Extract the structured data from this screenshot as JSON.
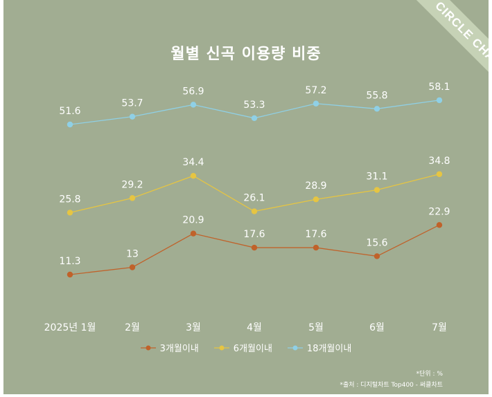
{
  "title": "월별 신곡 이용량 비중",
  "badge": "CIRCLE CHART",
  "unit_note": "*단위 : %",
  "source_note": "*출처 : 디지털차트 Top400 - 써클차트",
  "colors": {
    "background": "#a1ad92",
    "series_3m": "#c0622a",
    "series_6m": "#e6c542",
    "series_18m": "#8fd0e6",
    "text": "#ffffff"
  },
  "chart_data": {
    "type": "line",
    "title": "월별 신곡 이용량 비중",
    "categories": [
      "2025년 1월",
      "2월",
      "3월",
      "4월",
      "5월",
      "6월",
      "7월"
    ],
    "series": [
      {
        "name": "3개월이내",
        "values": [
          11.3,
          13,
          20.9,
          17.6,
          17.6,
          15.6,
          22.9
        ]
      },
      {
        "name": "6개월이내",
        "values": [
          25.8,
          29.2,
          34.4,
          26.1,
          28.9,
          31.1,
          34.8
        ]
      },
      {
        "name": "18개월이내",
        "values": [
          51.6,
          53.7,
          56.9,
          53.3,
          57.2,
          55.8,
          58.1
        ]
      }
    ],
    "value_labels": true,
    "grid": false,
    "legend": "bottom"
  }
}
